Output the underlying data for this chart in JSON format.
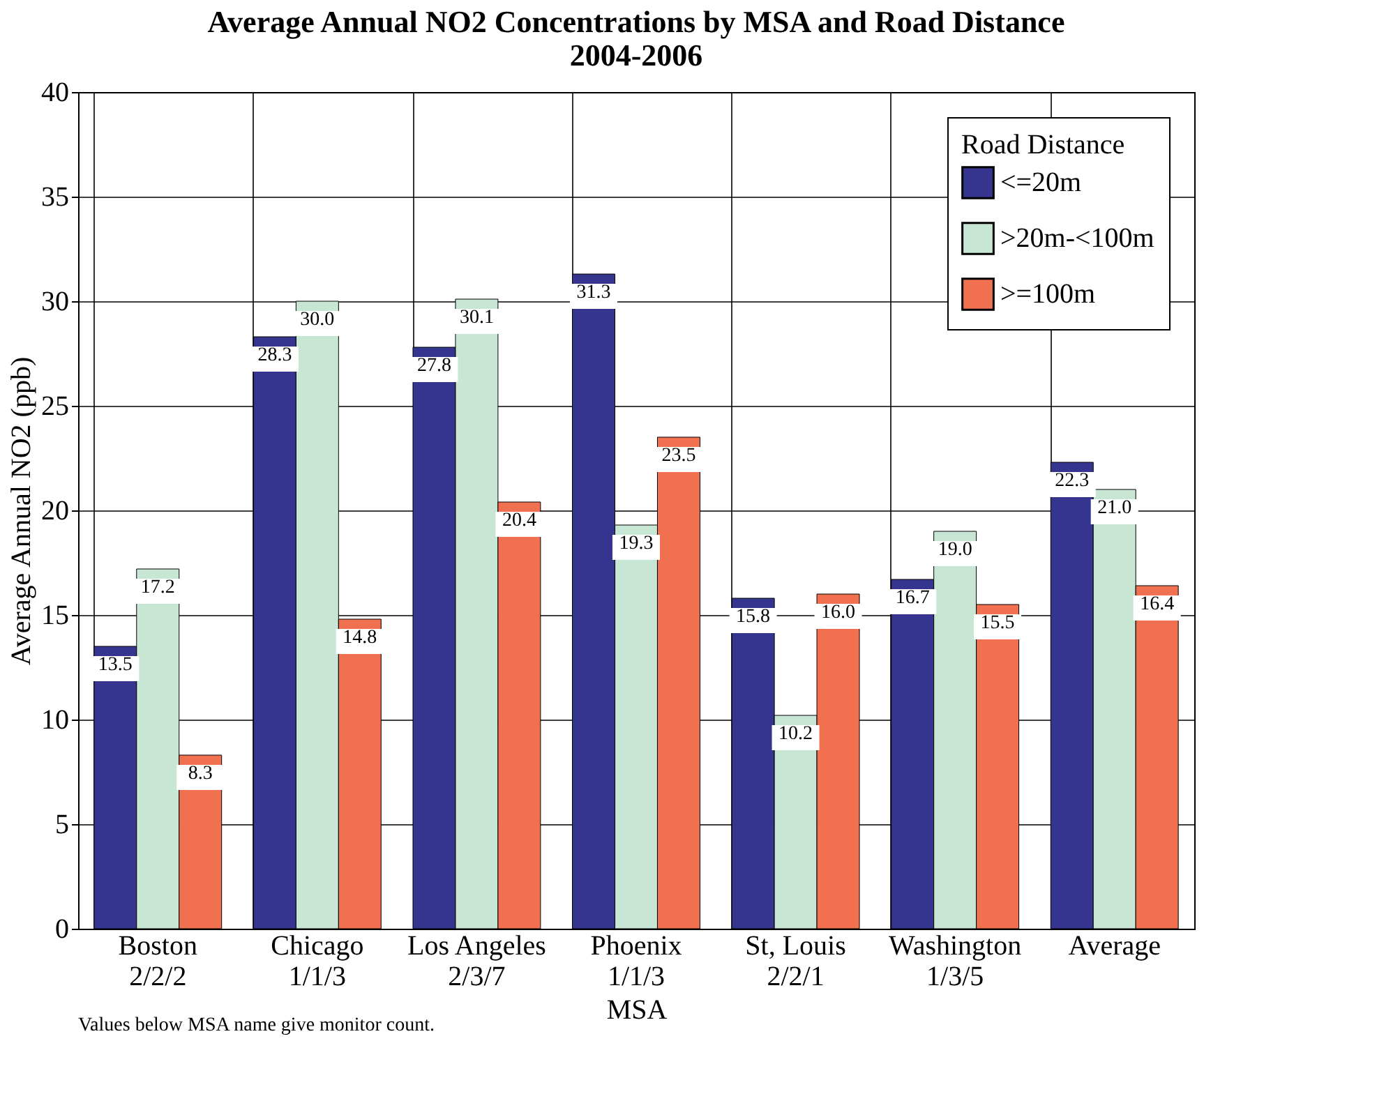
{
  "chart_data": {
    "type": "bar",
    "title": "Average Annual NO2 Concentrations by MSA and Road Distance\n2004-2006",
    "xlabel": "MSA",
    "ylabel": "Average Annual NO2 (ppb)",
    "legend_title": "Road Distance",
    "categories": [
      "Boston\n2/2/2",
      "Chicago\n1/1/3",
      "Los Angeles\n2/3/7",
      "Phoenix\n1/1/3",
      "St, Louis\n2/2/1",
      "Washington\n1/3/5",
      "Average"
    ],
    "series": [
      {
        "name": "<=20m",
        "color": "#35358f",
        "values": [
          13.5,
          28.3,
          27.8,
          31.3,
          15.8,
          16.7,
          22.3
        ],
        "value_labels": [
          "13.5",
          "28.3",
          "27.8",
          "31.3",
          "15.8",
          "16.7",
          "22.3"
        ]
      },
      {
        "name": ">20m-<100m",
        "color": "#c8e6d4",
        "values": [
          17.2,
          30.0,
          30.1,
          19.3,
          10.2,
          19.0,
          21.0
        ],
        "value_labels": [
          "17.2",
          "30.0",
          "30.1",
          "19.3",
          "10.2",
          "19.0",
          "21.0"
        ]
      },
      {
        "name": ">=100m",
        "color": "#f0704f",
        "values": [
          8.3,
          14.8,
          20.4,
          23.5,
          16.0,
          15.5,
          16.4
        ],
        "value_labels": [
          "8.3",
          "14.8",
          "20.4",
          "23.5",
          "16.0",
          "15.5",
          "16.4"
        ]
      }
    ],
    "ylim": [
      0,
      40
    ],
    "yticks": [
      0,
      5,
      10,
      15,
      20,
      25,
      30,
      35,
      40
    ],
    "grid": true,
    "legend": "top right",
    "annotations": [
      "Values below MSA name give monitor count."
    ]
  }
}
